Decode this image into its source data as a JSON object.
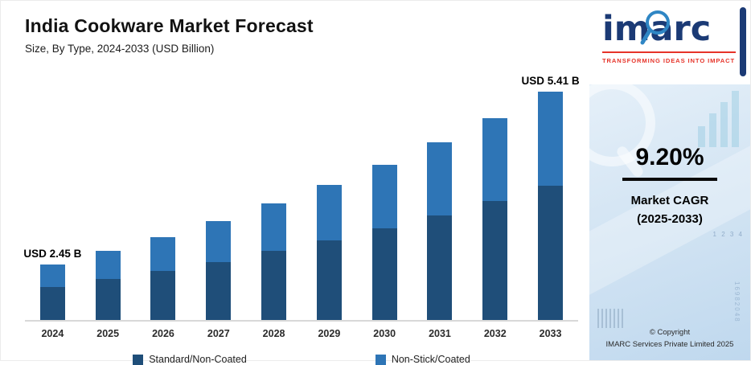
{
  "header": {
    "title": "India Cookware Market Forecast",
    "subtitle": "Size, By Type, 2024-2033 (USD Billion)"
  },
  "chart_data": {
    "type": "bar",
    "stacked": true,
    "title": "India Cookware Market Forecast",
    "subtitle": "Size, By Type, 2024-2033 (USD Billion)",
    "unit": "USD Billion",
    "categories": [
      "2024",
      "2025",
      "2026",
      "2027",
      "2028",
      "2029",
      "2030",
      "2031",
      "2032",
      "2033"
    ],
    "series": [
      {
        "name": "Standard/Non-Coated",
        "color": "#1f4e79",
        "values": [
          1.45,
          1.58,
          1.72,
          1.88,
          2.06,
          2.25,
          2.45,
          2.68,
          2.93,
          3.19
        ]
      },
      {
        "name": "Non-Stick/Coated",
        "color": "#2e75b6",
        "values": [
          1.0,
          1.1,
          1.2,
          1.31,
          1.43,
          1.56,
          1.71,
          1.86,
          2.03,
          2.22
        ]
      }
    ],
    "totals": [
      2.45,
      2.68,
      2.92,
      3.19,
      3.49,
      3.81,
      4.16,
      4.54,
      4.96,
      5.41
    ],
    "point_labels": {
      "2024": "USD 2.45 B",
      "2033": "USD 5.41 B"
    },
    "ylim": [
      1.5,
      5.6
    ],
    "grid": false,
    "legend_position": "bottom"
  },
  "sidebar": {
    "logo_text": "imarc",
    "tagline": "TRANSFORMING IDEAS INTO IMPACT",
    "accent_color": "#1b3a75",
    "tagline_color": "#e63329",
    "cagr": {
      "value": "9.20%",
      "label_line1": "Market CAGR",
      "label_line2": "(2025-2033)"
    },
    "copyright": {
      "line1": "© Copyright",
      "line2": "IMARC Services Private Limited 2025"
    },
    "decor": {
      "digits_row": "1 2 3 4",
      "digits_column": "16982048"
    }
  }
}
